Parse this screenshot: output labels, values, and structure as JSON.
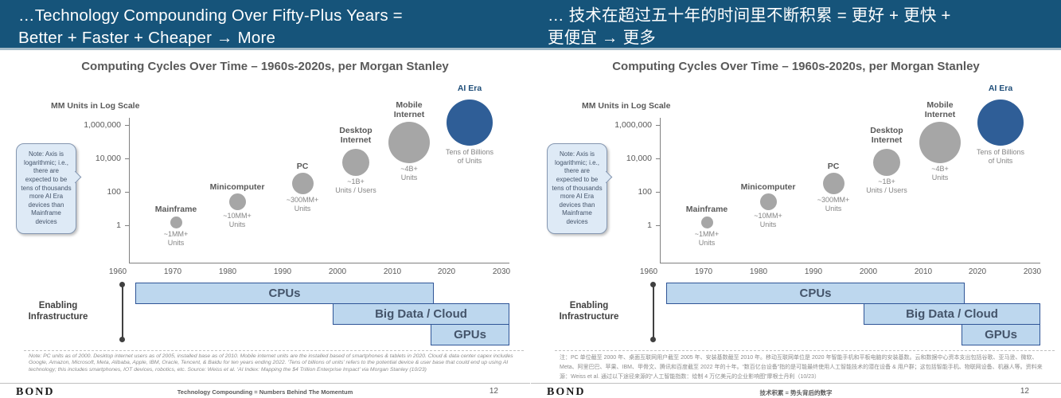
{
  "slide": {
    "header": {
      "bg_color": "#16547A",
      "title_en": "…Technology Compounding Over Fifty-Plus Years =\nBetter + Faster + Cheaper → More",
      "title_zh": "… 技术在超过五十年的时间里不断积累 = 更好 +  更快 +\n更便宜 →  更多"
    },
    "notes": {
      "en": "Note: PC units as of 2000. Desktop internet users as of 2005, installed base as of 2010. Mobile internet units are the installed based of smartphones & tablets in 2020. Cloud & data center capex includes Google, Amazon, Microsoft, Meta, Alibaba, Apple, IBM, Oracle, Tencent, & Baidu for ten years ending 2022. ‘Tens of billions of units’ refers to the potential device & user base that could end up using AI technology; this includes smartphones, IOT devices, robotics, etc. Source: Weiss et al. ‘AI Index: Mapping the $4 Trillion Enterprise Impact’ via Morgan Stanley (10/23)",
      "zh": "注：PC 单位截至 2000 年、桌面互联网用户截至 2005 年、安装基数截至 2010 年。移动互联网单位是 2020 年智能手机和平板电脑的安装基数。云和数据中心资本支出包括谷歌、亚马逊、微软、Meta、阿里巴巴、苹果、IBM、甲骨文、腾讯和百度截至 2022 年的十年。“数百亿台设备”指的是可能最终使用人工智能技术的潜在设备 & 用户群；这包括智能手机、物联网设备、机器人等。资料来源：Weiss et al. 通过以下途径来源的“人工智能指数：绘制 4 万亿美元的企业影响图”摩根士丹利（10/23）"
    },
    "footer": {
      "logo": "BOND",
      "caption_en": "Technology Compounding = Numbers Behind The Momentum",
      "caption_zh": "技术积累 = 势头背后的数字",
      "page": "12"
    }
  },
  "chart": {
    "title": "Computing Cycles Over Time – 1960s-2020s, per Morgan Stanley",
    "y_axis_label": "MM Units in Log Scale",
    "y_ticks": [
      "1,000,000",
      "10,000",
      "100",
      "1"
    ],
    "x_ticks": [
      "1960",
      "1970",
      "1980",
      "1990",
      "2000",
      "2010",
      "2020",
      "2030"
    ],
    "callout_note": "Note: Axis is logarithmic; i.e., there are expected to be tens of thousands more AI Era devices than Mainframe devices",
    "bubbles": [
      {
        "label": "Mainframe",
        "value": "~1MM+\nUnits",
        "color": "#A6A6A6"
      },
      {
        "label": "Minicomputer",
        "value": "~10MM+\nUnits",
        "color": "#A6A6A6"
      },
      {
        "label": "PC",
        "value": "~300MM+\nUnits",
        "color": "#A6A6A6"
      },
      {
        "label": "Desktop\nInternet",
        "value": "~1B+\nUnits / Users",
        "color": "#A6A6A6"
      },
      {
        "label": "Mobile\nInternet",
        "value": "~4B+\nUnits",
        "color": "#A6A6A6"
      },
      {
        "label": "AI Era",
        "value": "Tens of Billions\nof Units",
        "color": "#2F5E97"
      }
    ],
    "infrastructure": {
      "label": "Enabling\nInfrastructure",
      "bars": [
        {
          "label": "CPUs"
        },
        {
          "label": "Big Data / Cloud"
        },
        {
          "label": "GPUs"
        }
      ]
    }
  },
  "chart_data": {
    "type": "scatter",
    "title": "Computing Cycles Over Time – 1960s-2020s, per Morgan Stanley",
    "ylabel": "MM Units in Log Scale",
    "y_scale": "log",
    "y_tick_values": [
      1,
      100,
      10000,
      1000000
    ],
    "xlim": [
      1960,
      2030
    ],
    "x_ticks": [
      1960,
      1970,
      1980,
      1990,
      2000,
      2010,
      2020,
      2030
    ],
    "grid": false,
    "annotation": "Note: Axis is logarithmic; i.e., there are expected to be tens of thousands more AI Era devices than Mainframe devices",
    "points": [
      {
        "label": "Mainframe",
        "x": 1970,
        "units_mm": 1,
        "units_label": "~1MM+ Units",
        "color": "#A6A6A6"
      },
      {
        "label": "Minicomputer",
        "x": 1981,
        "units_mm": 10,
        "units_label": "~10MM+ Units",
        "color": "#A6A6A6"
      },
      {
        "label": "PC",
        "x": 1993,
        "units_mm": 300,
        "units_label": "~300MM+ Units",
        "color": "#A6A6A6"
      },
      {
        "label": "Desktop Internet",
        "x": 2003,
        "units_mm": 1000,
        "units_label": "~1B+ Units / Users",
        "color": "#A6A6A6"
      },
      {
        "label": "Mobile Internet",
        "x": 2012,
        "units_mm": 4000,
        "units_label": "~4B+ Units",
        "color": "#A6A6A6"
      },
      {
        "label": "AI Era",
        "x": 2023,
        "units_mm": 30000,
        "units_label": "Tens of Billions of Units",
        "color": "#2F5E97"
      }
    ],
    "timeline_label": "Enabling Infrastructure",
    "timeline_bars": [
      {
        "label": "CPUs",
        "start": 1962,
        "end": 2016
      },
      {
        "label": "Big Data / Cloud",
        "start": 1998,
        "end": 2030
      },
      {
        "label": "GPUs",
        "start": 2016,
        "end": 2030
      }
    ]
  }
}
